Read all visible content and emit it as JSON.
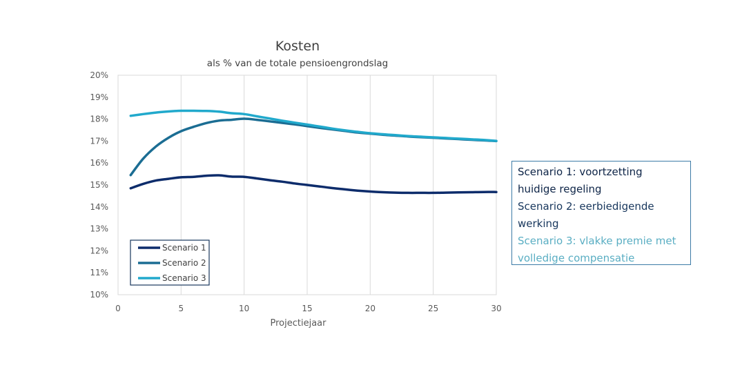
{
  "chart_data": {
    "type": "line",
    "title": "Kosten",
    "subtitle": "als % van de totale pensioengrondslag",
    "xlabel": "Projectiejaar",
    "ylabel": "",
    "xlim": [
      0,
      30
    ],
    "ylim": [
      10,
      20
    ],
    "xticks": [
      0,
      5,
      10,
      15,
      20,
      25,
      30
    ],
    "yticks": [
      10,
      11,
      12,
      13,
      14,
      15,
      16,
      17,
      18,
      19,
      20
    ],
    "ytick_labels": [
      "10%",
      "11%",
      "12%",
      "13%",
      "14%",
      "15%",
      "16%",
      "17%",
      "18%",
      "19%",
      "20%"
    ],
    "xtick_labels": [
      "0",
      "5",
      "10",
      "15",
      "20",
      "25",
      "30"
    ],
    "grid": "vertical",
    "legend_position": "bottom-left",
    "series": [
      {
        "name": "Scenario 1",
        "color": "#0d2c6b",
        "x": [
          1,
          2,
          3,
          4,
          5,
          6,
          7,
          8,
          9,
          10,
          11,
          12,
          13,
          14,
          15,
          16,
          17,
          18,
          19,
          20,
          21,
          22,
          23,
          24,
          25,
          26,
          27,
          28,
          29,
          30
        ],
        "y": [
          14.85,
          15.05,
          15.2,
          15.28,
          15.35,
          15.37,
          15.42,
          15.44,
          15.38,
          15.37,
          15.3,
          15.22,
          15.15,
          15.07,
          15.0,
          14.93,
          14.86,
          14.8,
          14.74,
          14.7,
          14.67,
          14.65,
          14.64,
          14.64,
          14.64,
          14.65,
          14.66,
          14.67,
          14.68,
          14.68
        ]
      },
      {
        "name": "Scenario 2",
        "color": "#1b6d93",
        "x": [
          1,
          2,
          3,
          4,
          5,
          6,
          7,
          8,
          9,
          10,
          11,
          12,
          13,
          14,
          15,
          16,
          17,
          18,
          19,
          20,
          21,
          22,
          23,
          24,
          25,
          26,
          27,
          28,
          29,
          30
        ],
        "y": [
          15.45,
          16.2,
          16.75,
          17.15,
          17.45,
          17.65,
          17.82,
          17.93,
          17.97,
          18.02,
          17.97,
          17.9,
          17.83,
          17.76,
          17.68,
          17.6,
          17.53,
          17.46,
          17.39,
          17.34,
          17.29,
          17.25,
          17.21,
          17.18,
          17.15,
          17.12,
          17.09,
          17.06,
          17.03,
          17.0
        ]
      },
      {
        "name": "Scenario 3",
        "color": "#21a9cc",
        "x": [
          1,
          2,
          3,
          4,
          5,
          6,
          7,
          8,
          9,
          10,
          11,
          12,
          13,
          14,
          15,
          16,
          17,
          18,
          19,
          20,
          21,
          22,
          23,
          24,
          25,
          26,
          27,
          28,
          29,
          30
        ],
        "y": [
          18.15,
          18.23,
          18.3,
          18.35,
          18.38,
          18.38,
          18.37,
          18.34,
          18.27,
          18.23,
          18.13,
          18.03,
          17.93,
          17.84,
          17.75,
          17.66,
          17.57,
          17.49,
          17.42,
          17.36,
          17.31,
          17.27,
          17.23,
          17.2,
          17.17,
          17.14,
          17.11,
          17.08,
          17.05,
          17.01
        ]
      }
    ]
  },
  "notes": {
    "line1": "Scenario 1: voortzetting",
    "line2": "huidige regeling",
    "line3": "Scenario 2: eerbiedigende",
    "line4": "werking",
    "line5": "Scenario 3: vlakke premie met",
    "line6": "volledige compensatie"
  }
}
